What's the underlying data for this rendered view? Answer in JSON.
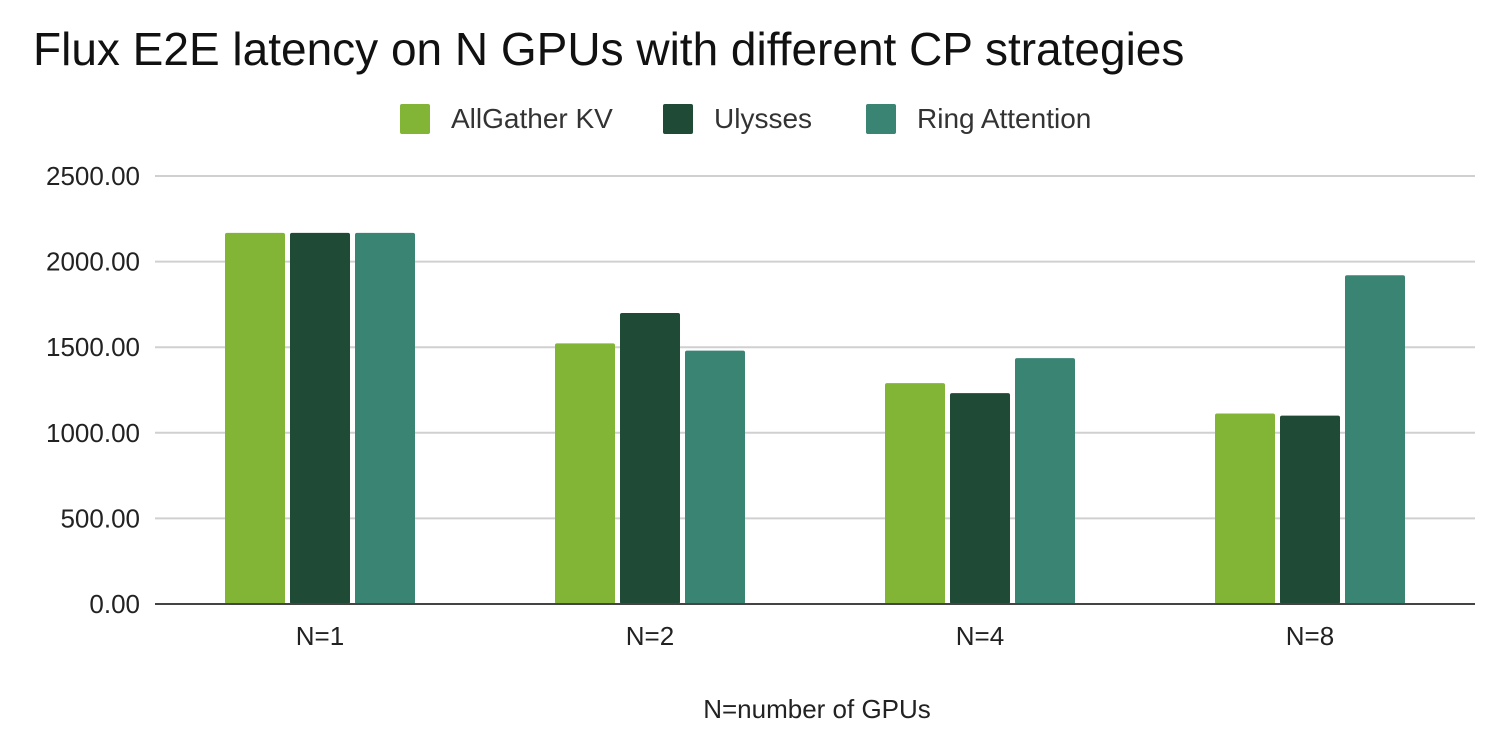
{
  "chart_data": {
    "type": "bar",
    "title": "Flux E2E latency on N GPUs with different CP strategies",
    "xlabel": "N=number of GPUs",
    "ylabel": "",
    "categories": [
      "N=1",
      "N=2",
      "N=4",
      "N=8"
    ],
    "series": [
      {
        "name": "AllGather KV",
        "color": "#82b536",
        "values": [
          2168,
          1522,
          1290,
          1113
        ]
      },
      {
        "name": "Ulysses",
        "color": "#1e4a36",
        "values": [
          2168,
          1700,
          1232,
          1100
        ]
      },
      {
        "name": "Ring Attention",
        "color": "#398473",
        "values": [
          2168,
          1480,
          1436,
          1920
        ]
      }
    ],
    "ylim": [
      0,
      2500
    ],
    "yticks": [
      "0.00",
      "500.00",
      "1000.00",
      "1500.00",
      "2000.00",
      "2500.00"
    ],
    "grid": true,
    "legend_position": "top-center"
  }
}
